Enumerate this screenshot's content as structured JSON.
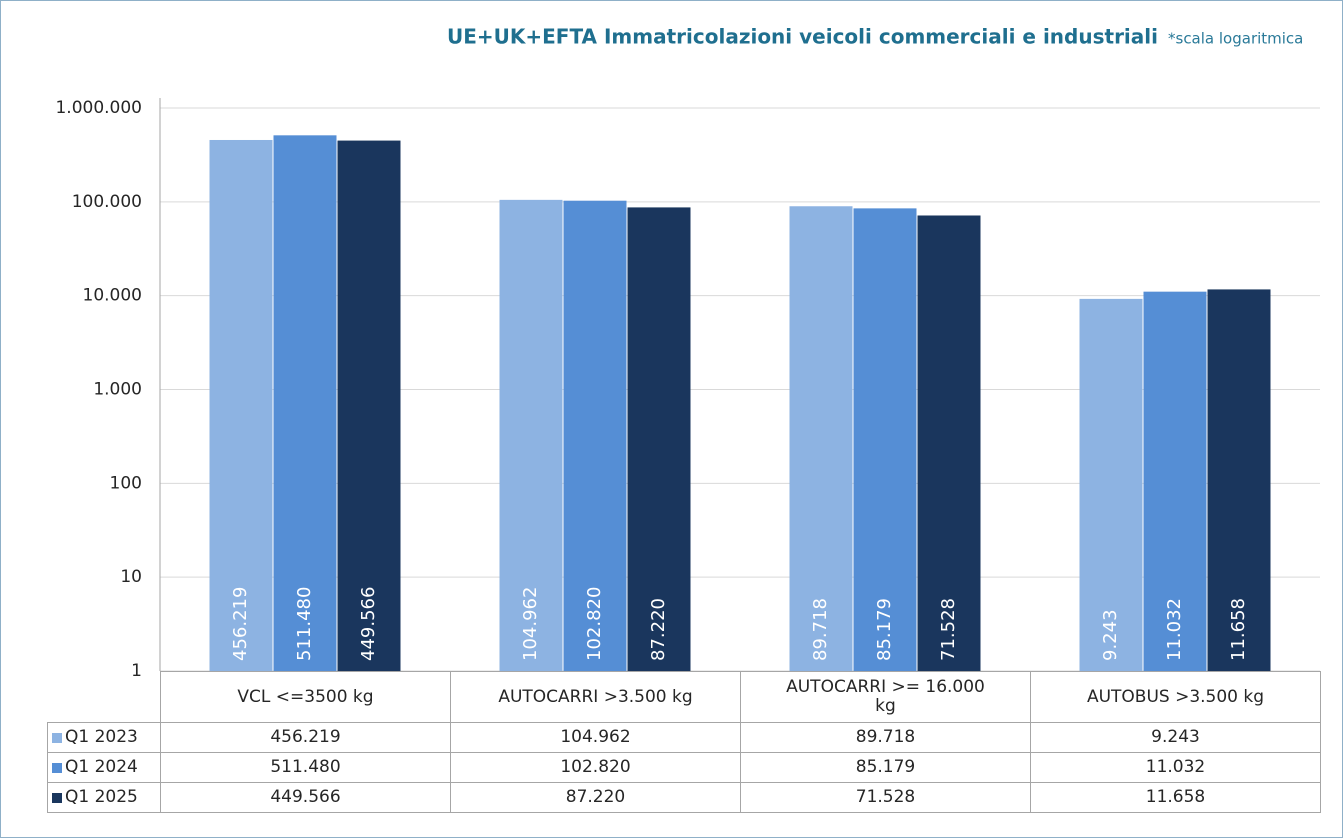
{
  "chart_data": {
    "type": "bar",
    "title": "UE+UK+EFTA Immatricolazioni veicoli commerciali e industriali",
    "annotation": "*scala logaritmica",
    "categories": [
      "VCL <=3500 kg",
      "AUTOCARRI >3.500 kg",
      "AUTOCARRI >= 16.000 kg",
      "AUTOBUS >3.500 kg"
    ],
    "series": [
      {
        "name": "Q1 2023",
        "color": "#8db3e2",
        "values": [
          456219,
          104962,
          89718,
          9243
        ],
        "value_labels": [
          "456.219",
          "104.962",
          "89.718",
          "9.243"
        ]
      },
      {
        "name": "Q1 2024",
        "color": "#558ed5",
        "values": [
          511480,
          102820,
          85179,
          11032
        ],
        "value_labels": [
          "511.480",
          "102.820",
          "85.179",
          "11.032"
        ]
      },
      {
        "name": "Q1 2025",
        "color": "#1a365d",
        "values": [
          449566,
          87220,
          71528,
          11658
        ],
        "value_labels": [
          "449.566",
          "87.220",
          "71.528",
          "11.658"
        ]
      }
    ],
    "log_scale": true,
    "ylim": [
      1,
      1000000
    ],
    "yticks": [
      1,
      10,
      100,
      {
        "value": 1000,
        "label": "1.000"
      },
      {
        "value": 10000,
        "label": "10.000"
      },
      {
        "value": 100000,
        "label": "100.000"
      },
      {
        "value": 1000000,
        "label": "1.000.000"
      }
    ],
    "grid": true
  }
}
